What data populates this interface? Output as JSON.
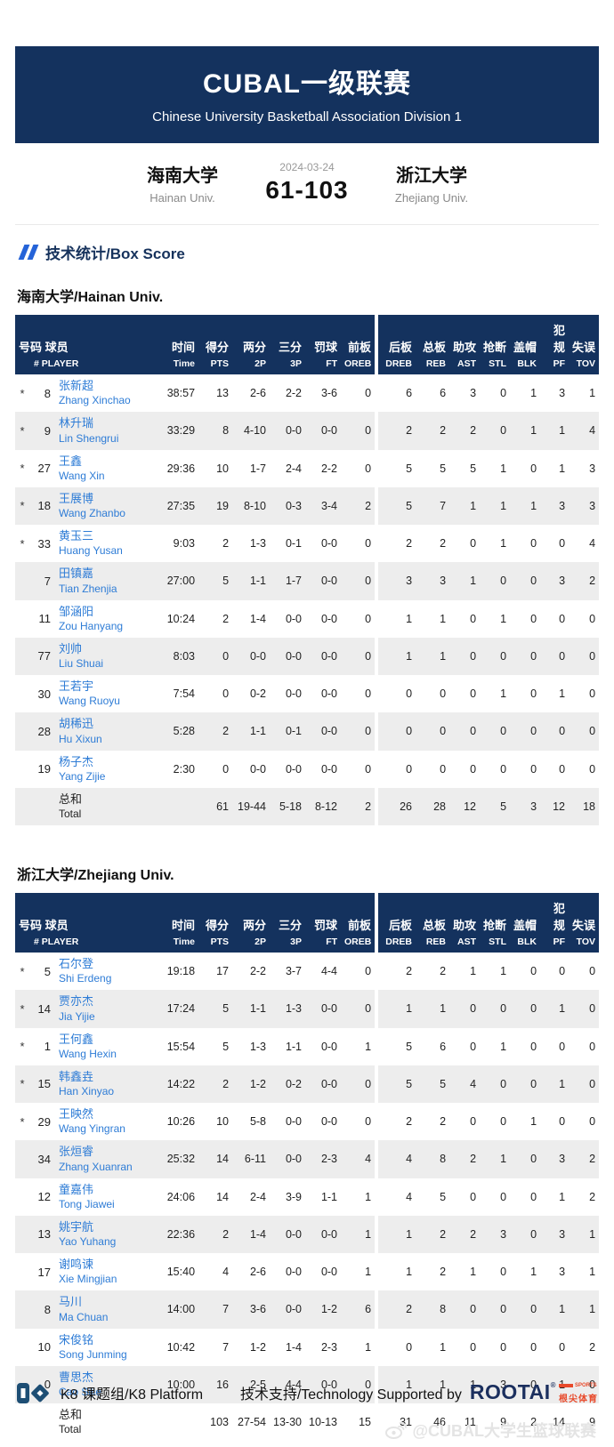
{
  "banner": {
    "title": "CUBAL一级联赛",
    "subtitle": "Chinese University Basketball Association Division 1"
  },
  "scoreboard": {
    "date": "2024-03-24",
    "score": "61-103",
    "home": {
      "name_cn": "海南大学",
      "name_en": "Hainan Univ."
    },
    "away": {
      "name_cn": "浙江大学",
      "name_en": "Zhejiang Univ."
    }
  },
  "section": {
    "title": "技术统计/Box Score"
  },
  "columns": {
    "num_cn": "号码",
    "player_cn": "球员",
    "num_player_en": "# PLAYER",
    "stats": [
      {
        "cn": "时间",
        "en": "Time"
      },
      {
        "cn": "得分",
        "en": "PTS"
      },
      {
        "cn": "两分",
        "en": "2P"
      },
      {
        "cn": "三分",
        "en": "3P"
      },
      {
        "cn": "罚球",
        "en": "FT"
      },
      {
        "cn": "前板",
        "en": "OREB"
      },
      {
        "cn": "后板",
        "en": "DREB"
      },
      {
        "cn": "总板",
        "en": "REB"
      },
      {
        "cn": "助攻",
        "en": "AST"
      },
      {
        "cn": "抢断",
        "en": "STL"
      },
      {
        "cn": "盖帽",
        "en": "BLK"
      },
      {
        "cn": "犯规",
        "en": "PF"
      },
      {
        "cn": "失误",
        "en": "TOV"
      }
    ]
  },
  "teams": [
    {
      "title": "海南大学/Hainan Univ.",
      "players": [
        {
          "starter": true,
          "num": "8",
          "cn": "张新超",
          "en": "Zhang Xinchao",
          "stats": [
            "38:57",
            "13",
            "2-6",
            "2-2",
            "3-6",
            "0",
            "6",
            "6",
            "3",
            "0",
            "1",
            "3",
            "1"
          ]
        },
        {
          "starter": true,
          "num": "9",
          "cn": "林升瑞",
          "en": "Lin Shengrui",
          "stats": [
            "33:29",
            "8",
            "4-10",
            "0-0",
            "0-0",
            "0",
            "2",
            "2",
            "2",
            "0",
            "1",
            "1",
            "4"
          ]
        },
        {
          "starter": true,
          "num": "27",
          "cn": "王鑫",
          "en": "Wang Xin",
          "stats": [
            "29:36",
            "10",
            "1-7",
            "2-4",
            "2-2",
            "0",
            "5",
            "5",
            "5",
            "1",
            "0",
            "1",
            "3"
          ]
        },
        {
          "starter": true,
          "num": "18",
          "cn": "王展博",
          "en": "Wang Zhanbo",
          "stats": [
            "27:35",
            "19",
            "8-10",
            "0-3",
            "3-4",
            "2",
            "5",
            "7",
            "1",
            "1",
            "1",
            "3",
            "3"
          ]
        },
        {
          "starter": true,
          "num": "33",
          "cn": "黄玉三",
          "en": "Huang Yusan",
          "stats": [
            "9:03",
            "2",
            "1-3",
            "0-1",
            "0-0",
            "0",
            "2",
            "2",
            "0",
            "1",
            "0",
            "0",
            "4"
          ]
        },
        {
          "starter": false,
          "num": "7",
          "cn": "田镇嘉",
          "en": "Tian Zhenjia",
          "stats": [
            "27:00",
            "5",
            "1-1",
            "1-7",
            "0-0",
            "0",
            "3",
            "3",
            "1",
            "0",
            "0",
            "3",
            "2"
          ]
        },
        {
          "starter": false,
          "num": "11",
          "cn": "邹涵阳",
          "en": "Zou Hanyang",
          "stats": [
            "10:24",
            "2",
            "1-4",
            "0-0",
            "0-0",
            "0",
            "1",
            "1",
            "0",
            "1",
            "0",
            "0",
            "0"
          ]
        },
        {
          "starter": false,
          "num": "77",
          "cn": "刘帅",
          "en": "Liu Shuai",
          "stats": [
            "8:03",
            "0",
            "0-0",
            "0-0",
            "0-0",
            "0",
            "1",
            "1",
            "0",
            "0",
            "0",
            "0",
            "0"
          ]
        },
        {
          "starter": false,
          "num": "30",
          "cn": "王若宇",
          "en": "Wang Ruoyu",
          "stats": [
            "7:54",
            "0",
            "0-2",
            "0-0",
            "0-0",
            "0",
            "0",
            "0",
            "0",
            "1",
            "0",
            "1",
            "0"
          ]
        },
        {
          "starter": false,
          "num": "28",
          "cn": "胡稀迅",
          "en": "Hu Xixun",
          "stats": [
            "5:28",
            "2",
            "1-1",
            "0-1",
            "0-0",
            "0",
            "0",
            "0",
            "0",
            "0",
            "0",
            "0",
            "0"
          ]
        },
        {
          "starter": false,
          "num": "19",
          "cn": "杨子杰",
          "en": "Yang Zijie",
          "stats": [
            "2:30",
            "0",
            "0-0",
            "0-0",
            "0-0",
            "0",
            "0",
            "0",
            "0",
            "0",
            "0",
            "0",
            "0"
          ]
        }
      ],
      "total": {
        "cn": "总和",
        "en": "Total",
        "stats": [
          "",
          "61",
          "19-44",
          "5-18",
          "8-12",
          "2",
          "26",
          "28",
          "12",
          "5",
          "3",
          "12",
          "18"
        ]
      }
    },
    {
      "title": "浙江大学/Zhejiang Univ.",
      "players": [
        {
          "starter": true,
          "num": "5",
          "cn": "石尔登",
          "en": "Shi Erdeng",
          "stats": [
            "19:18",
            "17",
            "2-2",
            "3-7",
            "4-4",
            "0",
            "2",
            "2",
            "1",
            "1",
            "0",
            "0",
            "0"
          ]
        },
        {
          "starter": true,
          "num": "14",
          "cn": "贾亦杰",
          "en": "Jia Yijie",
          "stats": [
            "17:24",
            "5",
            "1-1",
            "1-3",
            "0-0",
            "0",
            "1",
            "1",
            "0",
            "0",
            "0",
            "1",
            "0"
          ]
        },
        {
          "starter": true,
          "num": "1",
          "cn": "王何鑫",
          "en": "Wang Hexin",
          "stats": [
            "15:54",
            "5",
            "1-3",
            "1-1",
            "0-0",
            "1",
            "5",
            "6",
            "0",
            "1",
            "0",
            "0",
            "0"
          ]
        },
        {
          "starter": true,
          "num": "15",
          "cn": "韩鑫垚",
          "en": "Han Xinyao",
          "stats": [
            "14:22",
            "2",
            "1-2",
            "0-2",
            "0-0",
            "0",
            "5",
            "5",
            "4",
            "0",
            "0",
            "1",
            "0"
          ]
        },
        {
          "starter": true,
          "num": "29",
          "cn": "王映然",
          "en": "Wang Yingran",
          "stats": [
            "10:26",
            "10",
            "5-8",
            "0-0",
            "0-0",
            "0",
            "2",
            "2",
            "0",
            "0",
            "1",
            "0",
            "0"
          ]
        },
        {
          "starter": false,
          "num": "34",
          "cn": "张烜睿",
          "en": "Zhang Xuanran",
          "stats": [
            "25:32",
            "14",
            "6-11",
            "0-0",
            "2-3",
            "4",
            "4",
            "8",
            "2",
            "1",
            "0",
            "3",
            "2"
          ]
        },
        {
          "starter": false,
          "num": "12",
          "cn": "童嘉伟",
          "en": "Tong Jiawei",
          "stats": [
            "24:06",
            "14",
            "2-4",
            "3-9",
            "1-1",
            "1",
            "4",
            "5",
            "0",
            "0",
            "0",
            "1",
            "2"
          ]
        },
        {
          "starter": false,
          "num": "13",
          "cn": "姚宇航",
          "en": "Yao Yuhang",
          "stats": [
            "22:36",
            "2",
            "1-4",
            "0-0",
            "0-0",
            "1",
            "1",
            "2",
            "2",
            "3",
            "0",
            "3",
            "1"
          ]
        },
        {
          "starter": false,
          "num": "17",
          "cn": "谢鸣谏",
          "en": "Xie Mingjian",
          "stats": [
            "15:40",
            "4",
            "2-6",
            "0-0",
            "0-0",
            "1",
            "1",
            "2",
            "1",
            "0",
            "1",
            "3",
            "1"
          ]
        },
        {
          "starter": false,
          "num": "8",
          "cn": "马川",
          "en": "Ma Chuan",
          "stats": [
            "14:00",
            "7",
            "3-6",
            "0-0",
            "1-2",
            "6",
            "2",
            "8",
            "0",
            "0",
            "0",
            "1",
            "1"
          ]
        },
        {
          "starter": false,
          "num": "10",
          "cn": "宋俊铭",
          "en": "Song Junming",
          "stats": [
            "10:42",
            "7",
            "1-2",
            "1-4",
            "2-3",
            "1",
            "0",
            "1",
            "0",
            "0",
            "0",
            "0",
            "2"
          ]
        },
        {
          "starter": false,
          "num": "0",
          "cn": "曹思杰",
          "en": "Cao Sijie",
          "stats": [
            "10:00",
            "16",
            "2-5",
            "4-4",
            "0-0",
            "0",
            "1",
            "1",
            "1",
            "3",
            "0",
            "1",
            "0"
          ]
        }
      ],
      "total": {
        "cn": "总和",
        "en": "Total",
        "stats": [
          "",
          "103",
          "27-54",
          "13-30",
          "10-13",
          "15",
          "31",
          "46",
          "11",
          "9",
          "2",
          "14",
          "9"
        ]
      }
    }
  ],
  "footer": {
    "k8_label": "K8 课题组/K8 Platform",
    "support_label": "技术支持/Technology Supported by",
    "rootai": {
      "name": "ROOTAI",
      "reg": "®",
      "sports": "SPORTS",
      "cn": "根尖体育"
    }
  },
  "watermark": "@CUBAL大学生篮球联赛",
  "icons": {
    "section_marker": "double-slash-icon",
    "k8": "k8-logo",
    "weibo": "weibo-icon"
  },
  "colors": {
    "navy": "#14325e",
    "link_blue": "#2e7cd6",
    "stripe_gray": "#ededed",
    "accent_red": "#e8492a",
    "slash_blue": "#2563d8"
  }
}
